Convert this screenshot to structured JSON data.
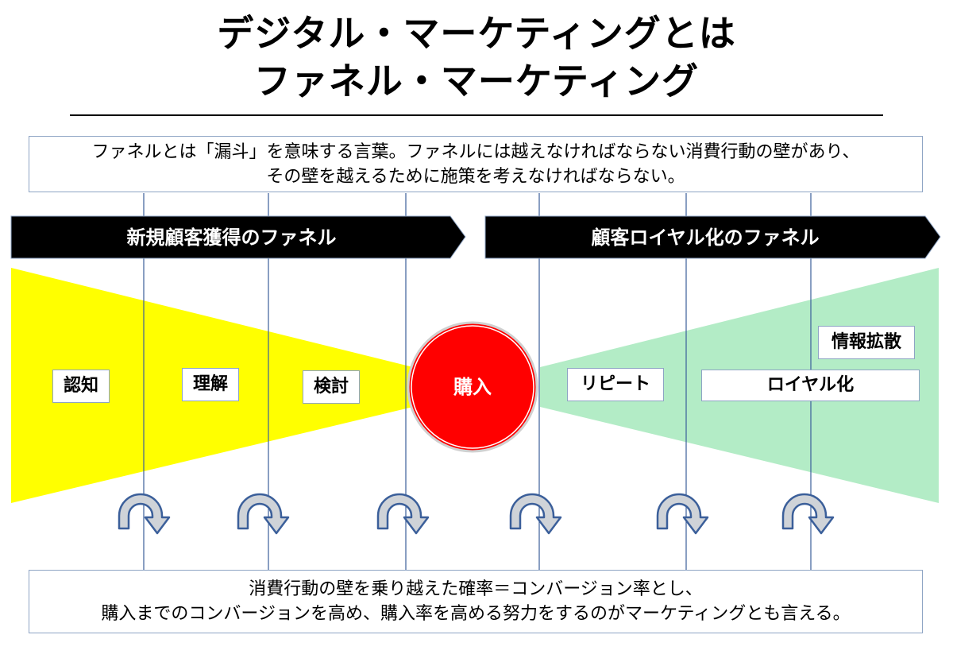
{
  "title": {
    "line1": "デジタル・マーケティングとは",
    "line2": "ファネル・マーケティング"
  },
  "intro": {
    "line1": "ファネルとは「漏斗」を意味する言葉。ファネルには越えなければならない消費行動の壁があり、",
    "line2": "その壁を越えるために施策を考えなければならない。"
  },
  "banners": {
    "acquisition": "新規顧客獲得のファネル",
    "loyalty": "顧客ロイヤル化のファネル"
  },
  "stages": {
    "ninchi": "認知",
    "rikai": "理解",
    "kento": "検討",
    "purchase": "購入",
    "repeat": "リピート",
    "loyal": "ロイヤル化",
    "jouhou": "情報拡散"
  },
  "conclusion": {
    "line1": "消費行動の壁を乗り越えた確率＝コンバージョン率とし、",
    "line2": "購入までのコンバージョンを高め、購入率を高める努力をするのがマーケティングとも言える。"
  },
  "colors": {
    "acquisition_funnel": "#ffff00",
    "loyalty_funnel": "#b3ecc6",
    "purchase_circle": "#ff0000",
    "banner": "#000000",
    "wall_line": "#3b5f9a",
    "arrow": "#cfd3d8"
  },
  "icons": {
    "wall_arrow": "curved-arrow-icon"
  }
}
